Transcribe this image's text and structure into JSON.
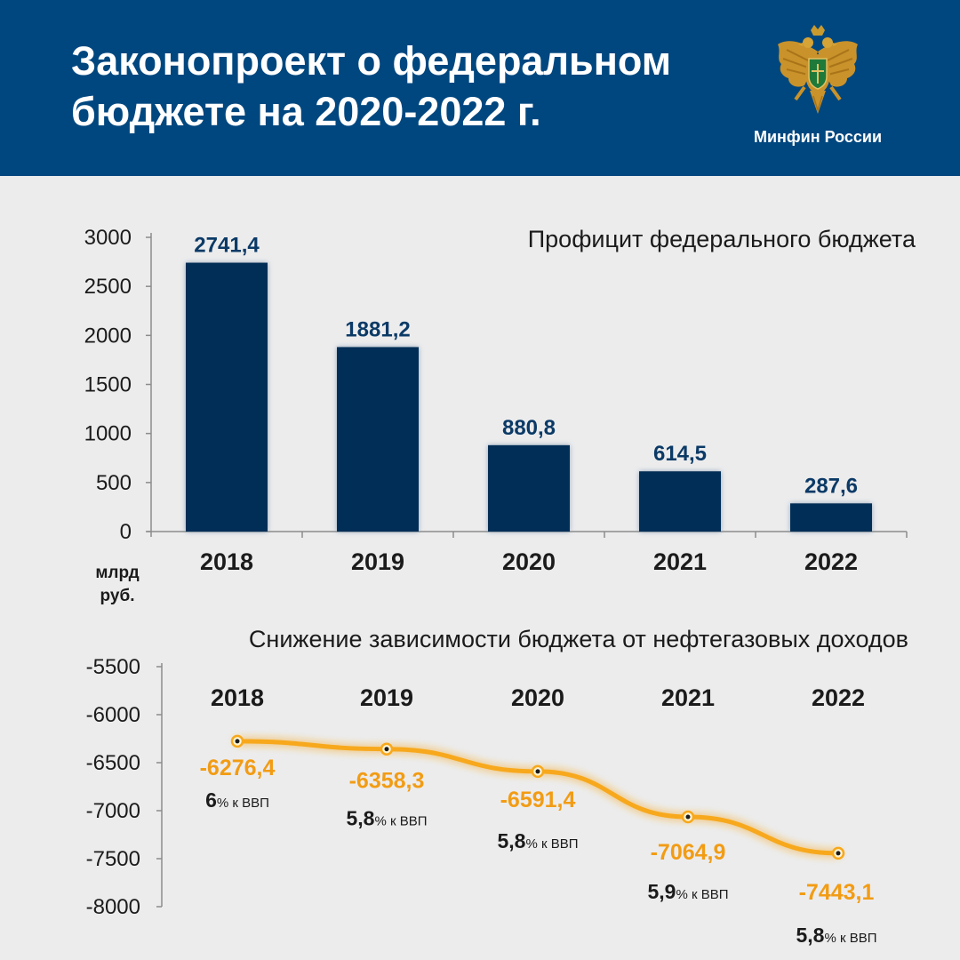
{
  "header": {
    "title_line1": "Законопроект о федеральном",
    "title_line2": "бюджете на 2020-2022 г.",
    "org_name": "Минфин России",
    "emblem_icon": "double-headed-eagle-emblem-icon"
  },
  "colors": {
    "header_bg": "#00477f",
    "background": "#ececed",
    "bar": "#052d57",
    "bar_label": "#0b3a66",
    "line": "#f7a81b",
    "line_label": "#f29c14"
  },
  "chart_data": [
    {
      "type": "bar",
      "title": "Профицит федерального бюджета",
      "unit_label": [
        "млрд",
        "руб."
      ],
      "categories": [
        "2018",
        "2019",
        "2020",
        "2021",
        "2022"
      ],
      "values": [
        2741.4,
        1881.2,
        880.8,
        614.5,
        287.6
      ],
      "value_labels": [
        "2741,4",
        "1881,2",
        "880,8",
        "614,5",
        "287,6"
      ],
      "ylim": [
        0,
        3000
      ],
      "yticks": [
        0,
        500,
        1000,
        1500,
        2000,
        2500,
        3000
      ],
      "grid": false
    },
    {
      "type": "line",
      "title": "Снижение зависимости бюджета от нефтегазовых доходов",
      "categories": [
        "2018",
        "2019",
        "2020",
        "2021",
        "2022"
      ],
      "values": [
        -6276.4,
        -6358.3,
        -6591.4,
        -7064.9,
        -7443.1
      ],
      "value_labels": [
        "-6276,4",
        "-6358,3",
        "-6591,4",
        "-7064,9",
        "-7443,1"
      ],
      "gdp_share": [
        "6",
        "5,8",
        "5,8",
        "5,9",
        "5,8"
      ],
      "gdp_suffix": "% к ВВП",
      "ylim": [
        -8000,
        -5500
      ],
      "yticks": [
        -5500,
        -6000,
        -6500,
        -7000,
        -7500,
        -8000
      ],
      "grid": false
    }
  ]
}
